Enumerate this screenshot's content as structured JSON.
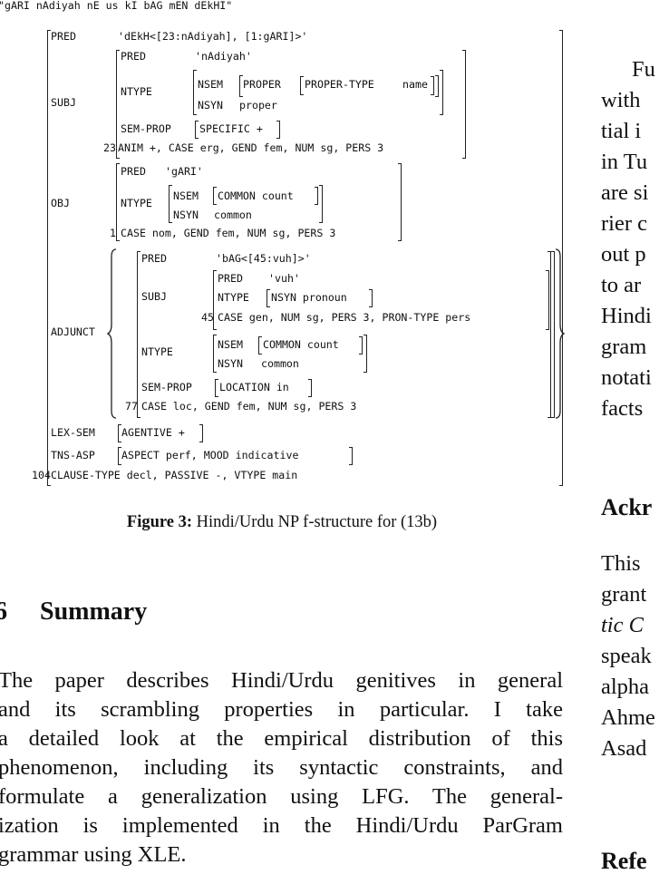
{
  "top_sentence": "\"gARI nAdiyah nE us kI bAG mEN dEkHI\"",
  "fstructure": {
    "pred_attr": "PRED",
    "pred_val": "'dEkH<[23:nAdiyah], [1:gARI]>'",
    "subj_attr": "SUBJ",
    "subj": {
      "pred_attr": "PRED",
      "pred_val": "'nAdiyah'",
      "ntype_attr": "NTYPE",
      "nsem_attr": "NSEM",
      "proper_attr": "PROPER",
      "proper_type_attr": "PROPER-TYPE",
      "proper_type_val": "name",
      "nsyn_attr": "NSYN",
      "nsyn_val": "proper",
      "semprop_attr": "SEM-PROP",
      "specific": "SPECIFIC +",
      "index": "23",
      "features": "ANIM +, CASE erg, GEND fem, NUM sg, PERS 3"
    },
    "obj_attr": "OBJ",
    "obj": {
      "pred_attr": "PRED",
      "pred_val": "'gARI'",
      "ntype_attr": "NTYPE",
      "nsem_attr": "NSEM",
      "common": "COMMON count",
      "nsyn_attr": "NSYN",
      "nsyn_val": "common",
      "index": "1",
      "features": "CASE nom, GEND fem, NUM sg, PERS 3"
    },
    "adjunct_attr": "ADJUNCT",
    "adjunct": {
      "pred_attr": "PRED",
      "pred_val": "'bAG<[45:vuh]>'",
      "subj_attr": "SUBJ",
      "subj": {
        "pred_attr": "PRED",
        "pred_val": "'vuh'",
        "ntype_attr": "NTYPE",
        "nsyn": "NSYN pronoun",
        "index": "45",
        "features": "CASE gen, NUM sg, PERS 3, PRON-TYPE pers"
      },
      "ntype_attr": "NTYPE",
      "nsem_attr": "NSEM",
      "common": "COMMON count",
      "nsyn_attr": "NSYN",
      "nsyn_val": "common",
      "semprop_attr": "SEM-PROP",
      "location": "LOCATION in",
      "index": "77",
      "features": "CASE loc, GEND fem, NUM sg, PERS 3"
    },
    "lexsem_attr": "LEX-SEM",
    "agentive": "AGENTIVE +",
    "tnsasp_attr": "TNS-ASP",
    "aspect": "ASPECT perf, MOOD indicative",
    "index": "104",
    "clause_type": "CLAUSE-TYPE decl, PASSIVE -, VTYPE main"
  },
  "caption": {
    "label": "Figure 3:",
    "text": "Hindi/Urdu NP f-structure for (13b)"
  },
  "section": {
    "number": "6",
    "title": "Summary",
    "lines": [
      "The paper describes Hindi/Urdu genitives in general",
      "and its scrambling properties in particular. I take",
      "a detailed look at the empirical distribution of this",
      "phenomenon, including its syntactic constraints, and",
      "formulate a generalization using LFG. The general-",
      "ization is implemented in the Hindi/Urdu ParGram",
      "grammar using XLE."
    ]
  },
  "right_column": {
    "lines_top": [
      "Fu",
      "with",
      "tial i",
      "in Tu",
      "are si",
      "rier c",
      "out p",
      "to ar",
      "Hindi",
      "gram",
      "notati",
      "facts"
    ],
    "heading_ack": "Ackr",
    "lines_ack": [
      "This",
      "grant",
      "tic C",
      "speak",
      "alpha",
      "Ahme",
      "Asad"
    ],
    "heading_ref": "Refe"
  }
}
